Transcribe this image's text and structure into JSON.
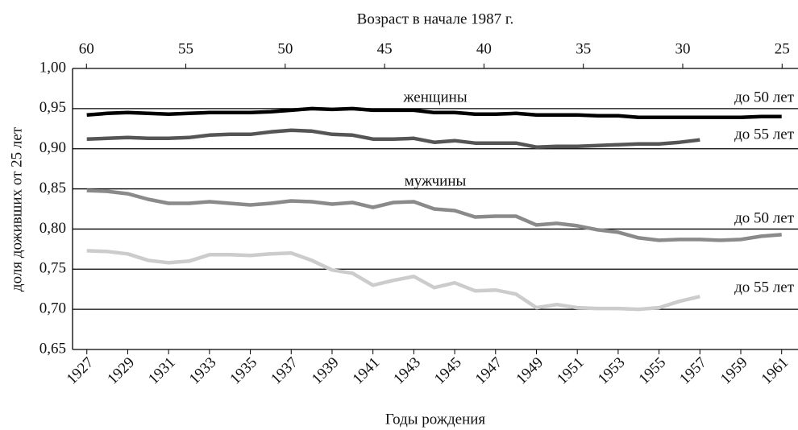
{
  "chart_data": {
    "type": "line",
    "title": "Возраст в начале 1987 г.",
    "x_label": "Годы рождения",
    "y_label": "доля доживших от 25 лет",
    "annotations": [
      "женщины",
      "мужчины"
    ],
    "x": [
      1927,
      1928,
      1929,
      1930,
      1931,
      1932,
      1933,
      1934,
      1935,
      1936,
      1937,
      1938,
      1939,
      1940,
      1941,
      1942,
      1943,
      1944,
      1945,
      1946,
      1947,
      1948,
      1949,
      1950,
      1951,
      1952,
      1953,
      1954,
      1955,
      1956,
      1957,
      1958,
      1959,
      1960,
      1961
    ],
    "series": [
      {
        "name": "до 50 лет",
        "color": "#000000",
        "values": [
          0.942,
          0.944,
          0.945,
          0.944,
          0.943,
          0.944,
          0.945,
          0.945,
          0.945,
          0.946,
          0.948,
          0.95,
          0.949,
          0.95,
          0.948,
          0.948,
          0.948,
          0.945,
          0.945,
          0.943,
          0.943,
          0.944,
          0.942,
          0.942,
          0.942,
          0.941,
          0.941,
          0.939,
          0.939,
          0.939,
          0.939,
          0.939,
          0.939,
          0.94,
          0.94
        ]
      },
      {
        "name": "до 55 лет",
        "color": "#555555",
        "values": [
          0.912,
          0.913,
          0.914,
          0.913,
          0.913,
          0.914,
          0.917,
          0.918,
          0.918,
          0.921,
          0.923,
          0.922,
          0.918,
          0.917,
          0.912,
          0.912,
          0.913,
          0.908,
          0.91,
          0.907,
          0.907,
          0.907,
          0.902,
          0.903,
          0.903,
          0.904,
          0.905,
          0.906,
          0.906,
          0.908,
          0.911,
          null,
          null,
          null,
          null
        ]
      },
      {
        "name": "до 50 лет",
        "color": "#8a8a8a",
        "values": [
          0.848,
          0.847,
          0.844,
          0.837,
          0.832,
          0.832,
          0.834,
          0.832,
          0.83,
          0.832,
          0.835,
          0.834,
          0.831,
          0.833,
          0.827,
          0.833,
          0.834,
          0.825,
          0.823,
          0.815,
          0.816,
          0.816,
          0.805,
          0.807,
          0.804,
          0.799,
          0.796,
          0.789,
          0.786,
          0.787,
          0.787,
          0.786,
          0.787,
          0.791,
          0.793
        ]
      },
      {
        "name": "до 55 лет",
        "color": "#cccccc",
        "values": [
          0.773,
          0.772,
          0.769,
          0.761,
          0.758,
          0.76,
          0.768,
          0.768,
          0.767,
          0.769,
          0.77,
          0.761,
          0.749,
          0.745,
          0.73,
          0.736,
          0.741,
          0.727,
          0.733,
          0.723,
          0.724,
          0.719,
          0.702,
          0.706,
          0.702,
          0.701,
          0.701,
          0.7,
          0.702,
          0.71,
          0.716,
          null,
          null,
          null,
          null
        ]
      }
    ],
    "xlim": [
      1926.3,
      1961.8
    ],
    "xticks": [
      1927,
      1929,
      1931,
      1933,
      1935,
      1937,
      1939,
      1941,
      1943,
      1945,
      1947,
      1949,
      1951,
      1953,
      1955,
      1957,
      1959,
      1961
    ],
    "x2lim": [
      60.7,
      24.2
    ],
    "x2ticks": [
      60,
      55,
      50,
      45,
      40,
      35,
      30,
      25
    ],
    "ylim": [
      0.65,
      1.0
    ],
    "yticks": [
      {
        "value": 0.65,
        "label": "0,65"
      },
      {
        "value": 0.7,
        "label": "0,70"
      },
      {
        "value": 0.75,
        "label": "0,75"
      },
      {
        "value": 0.8,
        "label": "0,80"
      },
      {
        "value": 0.85,
        "label": "0,85"
      },
      {
        "value": 0.9,
        "label": "0,90"
      },
      {
        "value": 0.95,
        "label": "0,95"
      },
      {
        "value": 1.0,
        "label": "1,00"
      }
    ],
    "grid": true
  }
}
